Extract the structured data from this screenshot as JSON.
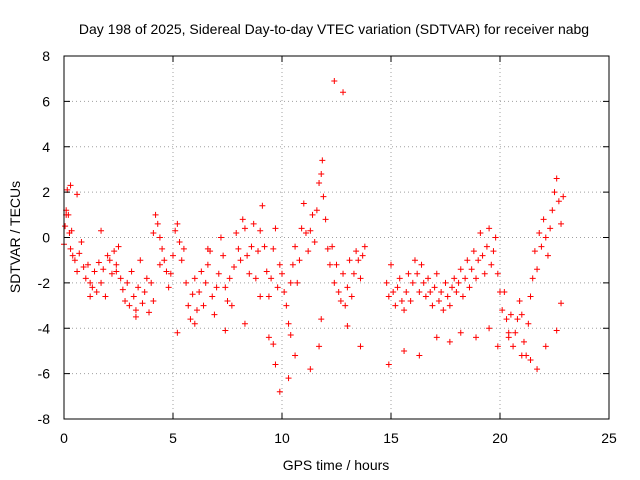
{
  "chart_data": {
    "type": "scatter",
    "title": "Day 198 of 2025, Sidereal Day-to-day VTEC variation (SDTVAR) for receiver nabg",
    "xlabel": "GPS time / hours",
    "ylabel": "SDTVAR / TECUs",
    "xlim": [
      0,
      25
    ],
    "ylim": [
      -8,
      8
    ],
    "xticks": [
      0,
      5,
      10,
      15,
      20,
      25
    ],
    "yticks": [
      -8,
      -6,
      -4,
      -2,
      0,
      2,
      4,
      6,
      8
    ],
    "grid": true,
    "marker": "+",
    "series_color": "#ff0000",
    "series": [
      {
        "name": "SDTVAR",
        "x": [
          0.0,
          0.05,
          0.1,
          0.15,
          0.2,
          0.25,
          0.3,
          0.35,
          0.4,
          0.5,
          0.6,
          0.7,
          0.8,
          0.9,
          1.0,
          1.1,
          1.2,
          1.3,
          1.4,
          1.5,
          1.6,
          1.7,
          1.8,
          1.9,
          2.0,
          2.1,
          2.2,
          2.3,
          2.4,
          2.5,
          2.6,
          2.7,
          2.8,
          2.9,
          3.0,
          3.1,
          3.2,
          3.3,
          3.4,
          3.5,
          3.6,
          3.7,
          3.8,
          3.9,
          4.0,
          4.1,
          4.2,
          4.3,
          4.4,
          4.5,
          4.6,
          4.7,
          4.8,
          4.9,
          5.0,
          5.1,
          5.2,
          5.3,
          5.4,
          5.5,
          5.6,
          5.7,
          5.8,
          5.9,
          6.0,
          6.1,
          6.2,
          6.3,
          6.4,
          6.5,
          6.6,
          6.7,
          6.8,
          6.9,
          7.0,
          7.1,
          7.2,
          7.3,
          7.4,
          7.5,
          7.6,
          7.7,
          7.8,
          7.9,
          8.0,
          8.1,
          8.2,
          8.3,
          8.4,
          8.5,
          8.6,
          8.7,
          8.8,
          8.9,
          9.0,
          9.1,
          9.2,
          9.3,
          9.4,
          9.5,
          9.6,
          9.7,
          9.8,
          9.9,
          10.0,
          10.1,
          10.2,
          10.3,
          10.4,
          10.5,
          10.6,
          10.7,
          10.8,
          10.9,
          11.0,
          11.1,
          11.2,
          11.3,
          11.4,
          11.5,
          11.6,
          11.7,
          11.8,
          11.85,
          11.9,
          12.0,
          12.1,
          12.2,
          12.3,
          12.4,
          12.5,
          12.6,
          12.7,
          12.8,
          12.9,
          13.0,
          13.1,
          13.2,
          13.3,
          13.4,
          13.5,
          13.6,
          13.7,
          13.8,
          14.8,
          14.9,
          15.0,
          15.1,
          15.2,
          15.3,
          15.4,
          15.5,
          15.6,
          15.7,
          15.8,
          15.9,
          16.0,
          16.1,
          16.2,
          16.3,
          16.4,
          16.5,
          16.6,
          16.7,
          16.8,
          16.9,
          17.0,
          17.1,
          17.2,
          17.3,
          17.4,
          17.5,
          17.6,
          17.7,
          17.8,
          17.9,
          18.0,
          18.1,
          18.2,
          18.3,
          18.4,
          18.5,
          18.6,
          18.7,
          18.8,
          18.9,
          19.0,
          19.1,
          19.2,
          19.3,
          19.4,
          19.5,
          19.6,
          19.7,
          19.8,
          19.9,
          20.0,
          20.1,
          20.2,
          20.3,
          20.4,
          20.5,
          20.6,
          20.7,
          20.8,
          20.9,
          21.0,
          21.1,
          21.2,
          21.3,
          21.4,
          21.5,
          21.6,
          21.7,
          21.8,
          21.9,
          22.0,
          22.1,
          22.2,
          22.3,
          22.4,
          22.5,
          22.6,
          22.7,
          22.8,
          22.9,
          0.1,
          0.3,
          0.6,
          1.2,
          1.7,
          2.4,
          3.3,
          4.1,
          4.4,
          5.2,
          6.0,
          6.6,
          7.4,
          8.3,
          9.0,
          9.4,
          9.6,
          9.7,
          9.9,
          10.3,
          10.4,
          10.6,
          11.3,
          11.7,
          11.8,
          12.4,
          12.8,
          13.0,
          13.6,
          14.9,
          15.6,
          16.3,
          17.1,
          17.7,
          18.2,
          18.9,
          19.5,
          19.9,
          20.4,
          21.0,
          21.4,
          21.7,
          22.1,
          22.6,
          22.8
        ],
        "y": [
          -0.3,
          0.5,
          1.2,
          2.1,
          1.0,
          0.2,
          -0.5,
          0.3,
          -0.8,
          -1.0,
          -1.5,
          -0.7,
          -0.2,
          -1.3,
          -1.8,
          -1.2,
          -2.0,
          -2.2,
          -1.5,
          -2.4,
          -1.1,
          -2.0,
          -1.4,
          -2.6,
          -0.8,
          -1.0,
          -1.6,
          -0.6,
          -1.2,
          -0.4,
          -1.8,
          -2.3,
          -2.8,
          -2.0,
          -3.0,
          -1.5,
          -2.6,
          -3.5,
          -2.2,
          -1.0,
          -2.9,
          -2.4,
          -1.8,
          -3.3,
          -2.0,
          0.2,
          1.0,
          0.6,
          0.0,
          -0.5,
          -1.0,
          -1.5,
          -2.2,
          -1.6,
          -0.8,
          0.3,
          0.6,
          -0.2,
          -1.0,
          -0.5,
          -2.0,
          -3.0,
          -3.6,
          -2.5,
          -1.8,
          -3.2,
          -2.4,
          -1.5,
          -3.0,
          -2.0,
          -1.2,
          -0.6,
          -2.6,
          -3.4,
          -2.2,
          -1.6,
          0.0,
          -0.8,
          -2.2,
          -2.8,
          -1.8,
          -3.0,
          -1.3,
          0.2,
          -0.5,
          -1.0,
          0.8,
          0.4,
          -0.8,
          -1.6,
          -0.4,
          0.6,
          -1.8,
          -0.6,
          0.3,
          1.4,
          -0.4,
          -1.5,
          -2.6,
          -1.8,
          -0.5,
          0.4,
          -2.2,
          -1.2,
          -1.6,
          -2.4,
          -3.0,
          -3.8,
          -2.0,
          -1.2,
          -0.4,
          -2.0,
          -1.0,
          0.4,
          1.5,
          0.2,
          -0.6,
          0.3,
          1.0,
          -0.2,
          1.2,
          2.4,
          2.8,
          3.4,
          1.8,
          0.8,
          -0.5,
          -1.2,
          -0.4,
          -2.0,
          -1.2,
          -2.4,
          -2.8,
          -1.6,
          -3.0,
          -2.2,
          -1.0,
          -2.6,
          -1.6,
          -0.6,
          -1.0,
          -1.8,
          -0.8,
          -0.4,
          -2.0,
          -2.6,
          -1.2,
          -2.4,
          -3.0,
          -2.2,
          -1.8,
          -2.8,
          -3.2,
          -2.4,
          -1.6,
          -2.8,
          -2.0,
          -1.0,
          -1.6,
          -2.4,
          -1.2,
          -2.0,
          -2.6,
          -1.8,
          -2.4,
          -3.0,
          -2.2,
          -1.6,
          -2.8,
          -2.4,
          -3.2,
          -2.0,
          -2.6,
          -3.0,
          -2.2,
          -1.8,
          -2.4,
          -2.0,
          -1.4,
          -2.6,
          -1.8,
          -1.0,
          -2.2,
          -1.4,
          -0.6,
          -1.8,
          -1.0,
          0.2,
          -0.8,
          -1.6,
          -0.4,
          0.4,
          -1.2,
          -0.6,
          0.0,
          -1.6,
          -2.4,
          -3.2,
          -2.4,
          -3.6,
          -4.2,
          -3.4,
          -4.8,
          -4.2,
          -3.6,
          -2.8,
          -3.4,
          -4.6,
          -5.2,
          -3.8,
          -2.6,
          -1.8,
          -0.6,
          -1.4,
          0.2,
          -0.4,
          0.8,
          0.0,
          -0.8,
          0.4,
          1.2,
          2.0,
          2.6,
          1.6,
          0.6,
          1.8,
          1.0,
          2.3,
          1.9,
          -2.6,
          0.3,
          -1.5,
          -3.2,
          -2.8,
          -1.2,
          -4.2,
          -3.8,
          -0.5,
          -4.1,
          -3.8,
          -2.6,
          -4.4,
          -4.7,
          -5.6,
          -6.8,
          -6.2,
          -4.3,
          -5.2,
          -5.8,
          -4.8,
          -3.6,
          6.9,
          6.4,
          -3.9,
          -4.8,
          -5.6,
          -5.0,
          -5.2,
          -4.4,
          -4.6,
          -4.2,
          -4.4,
          -4.0,
          -4.8,
          -4.4,
          -5.2,
          -5.4,
          -5.8,
          -4.8,
          -4.1,
          -2.9
        ]
      }
    ]
  }
}
